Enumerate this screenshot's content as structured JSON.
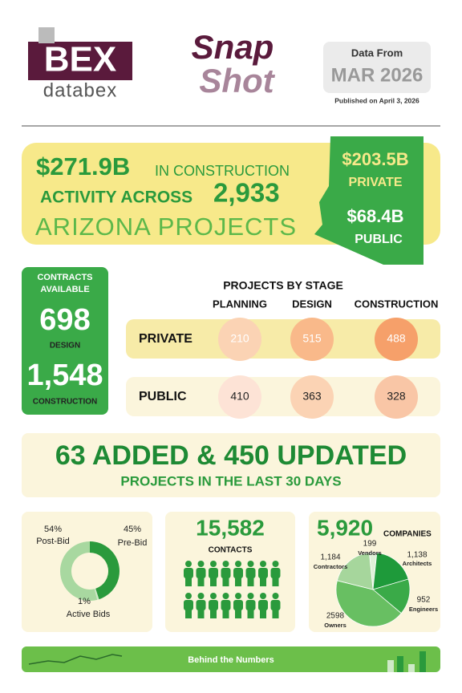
{
  "header": {
    "logo": "BEX",
    "logo_sub": "databex",
    "snap": "Snap",
    "shot": "Shot",
    "data_from": "Data From",
    "month": "MAR 2026",
    "published": "Published on April 3, 2026"
  },
  "summary": {
    "total": "$271.9B",
    "line1": "IN CONSTRUCTION",
    "line2": "ACTIVITY ACROSS",
    "projects": "2,933",
    "line3": "ARIZONA PROJECTS",
    "private_value": "$203.5B",
    "private_label": "PRIVATE",
    "public_value": "$68.4B",
    "public_label": "PUBLIC"
  },
  "contracts": {
    "title1": "CONTRACTS",
    "title2": "AVAILABLE",
    "design_value": "698",
    "design_label": "DESIGN",
    "construction_value": "1,548",
    "construction_label": "CONSTRUCTION"
  },
  "stage": {
    "title": "PROJECTS BY STAGE",
    "columns": [
      "PLANNING",
      "DESIGN",
      "CONSTRUCTION"
    ],
    "rows": [
      {
        "label": "PRIVATE",
        "values": [
          "210",
          "515",
          "488"
        ]
      },
      {
        "label": "PUBLIC",
        "values": [
          "410",
          "363",
          "328"
        ]
      }
    ]
  },
  "updates": {
    "headline": "63 ADDED & 450 UPDATED",
    "sub": "PROJECTS IN THE LAST 30 DAYS"
  },
  "bids": {
    "labels": [
      "Post-Bid",
      "Pre-Bid",
      "Active Bids"
    ],
    "values": [
      54,
      45,
      1
    ],
    "value_labels": [
      "54%",
      "45%",
      "1%"
    ],
    "colors": [
      "#a8d8a0",
      "#2a9a3c",
      "#cfe9c8"
    ]
  },
  "contacts": {
    "value": "15,582",
    "label": "CONTACTS"
  },
  "companies": {
    "value": "5,920",
    "label": "COMPANIES",
    "labels": [
      "Vendors",
      "Architects",
      "Engineers",
      "Owners",
      "Contractors"
    ],
    "values": [
      199,
      1138,
      952,
      2598,
      1184
    ],
    "value_labels": [
      "199",
      "1,138",
      "952",
      "2598",
      "1,184"
    ],
    "colors": [
      "#dff0d8",
      "#1e9a3a",
      "#3aaa48",
      "#68bf62",
      "#a6d69c"
    ]
  },
  "footer": {
    "label": "Behind the Numbers"
  }
}
